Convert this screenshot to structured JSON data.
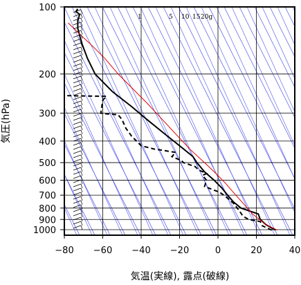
{
  "chart_data": {
    "type": "line",
    "title": "",
    "xlabel": "気温(実線), 露点(破線)",
    "ylabel": "気圧(hPa)",
    "xlim": [
      -80,
      40
    ],
    "ylim": [
      1050,
      100
    ],
    "y_scale": "log",
    "x_ticks": [
      -80,
      -60,
      -40,
      -20,
      0,
      20,
      40
    ],
    "y_ticks": [
      100,
      200,
      300,
      400,
      500,
      600,
      700,
      800,
      900,
      1000
    ],
    "grid": true,
    "legend": "none",
    "mixing_ratio_labels": [
      "1",
      "5",
      "10",
      "15",
      "20g"
    ],
    "colors": {
      "temperature": "#000000",
      "dewpoint": "#000000",
      "reference_curve": "#e00000",
      "isotherm_lines": "#4a52e8",
      "grid": "#000000"
    },
    "series": [
      {
        "style": "solid",
        "points": [
          [
            30,
            1005
          ],
          [
            25,
            950
          ],
          [
            22,
            900
          ],
          [
            21,
            850
          ],
          [
            12,
            800
          ],
          [
            8,
            750
          ],
          [
            5,
            700
          ],
          [
            2,
            650
          ],
          [
            -2,
            600
          ],
          [
            -7,
            550
          ],
          [
            -11,
            500
          ],
          [
            -13,
            470
          ],
          [
            -20,
            420
          ],
          [
            -28,
            370
          ],
          [
            -37,
            320
          ],
          [
            -45,
            280
          ],
          [
            -55,
            240
          ],
          [
            -64,
            200
          ],
          [
            -68,
            170
          ],
          [
            -71,
            145
          ],
          [
            -73,
            125
          ],
          [
            -73,
            115
          ],
          [
            -72,
            108
          ],
          [
            -74,
            105
          ],
          [
            -73,
            102
          ]
        ]
      },
      {
        "style": "dashed",
        "points": [
          [
            28,
            1005
          ],
          [
            23,
            960
          ],
          [
            22,
            920
          ],
          [
            16,
            900
          ],
          [
            13,
            870
          ],
          [
            11,
            820
          ],
          [
            8,
            760
          ],
          [
            4,
            710
          ],
          [
            1,
            680
          ],
          [
            -7,
            640
          ],
          [
            -6,
            600
          ],
          [
            -8,
            570
          ],
          [
            -6,
            560
          ],
          [
            -10,
            540
          ],
          [
            -12,
            520
          ],
          [
            -18,
            500
          ],
          [
            -19,
            490
          ],
          [
            -24,
            470
          ],
          [
            -22,
            450
          ],
          [
            -29,
            440
          ],
          [
            -33,
            435
          ],
          [
            -40,
            420
          ],
          [
            -45,
            380
          ],
          [
            -48,
            350
          ],
          [
            -50,
            320
          ],
          [
            -52,
            305
          ],
          [
            -58,
            302
          ],
          [
            -61,
            300
          ],
          [
            -60,
            262
          ],
          [
            -58,
            252
          ],
          [
            -82,
            250
          ]
        ]
      },
      {
        "style": "solid",
        "points": [
          [
            31,
            1005
          ],
          [
            25,
            950
          ],
          [
            18,
            850
          ],
          [
            13,
            760
          ],
          [
            8,
            680
          ],
          [
            4,
            620
          ],
          [
            -1,
            560
          ],
          [
            -7,
            500
          ],
          [
            -14,
            440
          ],
          [
            -21,
            380
          ],
          [
            -29,
            320
          ],
          [
            -37,
            270
          ],
          [
            -45,
            230
          ],
          [
            -52,
            200
          ],
          [
            -59,
            170
          ],
          [
            -66,
            148
          ],
          [
            -73,
            130
          ],
          [
            -78,
            118
          ]
        ]
      }
    ],
    "wind_barbs": "left column, 100–1000 hPa"
  }
}
